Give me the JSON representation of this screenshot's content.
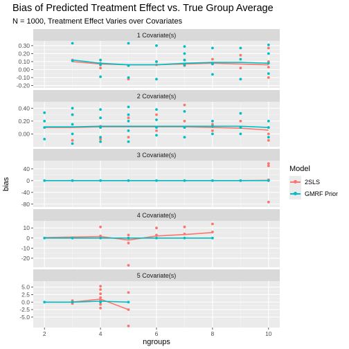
{
  "title": "Bias of Predicted Treatment Effect vs. True Group Average",
  "subtitle": "N = 1000, Treatment Effect Varies over Covariates",
  "legend": {
    "title": "Model",
    "items": [
      {
        "label": "2SLS",
        "color": "#f8766d"
      },
      {
        "label": "GMRF Prior",
        "color": "#00bfc4"
      }
    ]
  },
  "chart_data": {
    "type": "scatter",
    "xlabel": "ngroups",
    "ylabel": "bias",
    "xlim": [
      1.6,
      10.4
    ],
    "x_ticks": [
      2,
      4,
      6,
      8,
      10
    ],
    "grid": true,
    "legend_position": "right",
    "facets": [
      {
        "strip": "1 Covariate(s)",
        "ylim": [
          -0.23,
          0.36
        ],
        "y_ticks": [
          -0.2,
          -0.1,
          0.0,
          0.1,
          0.2,
          0.3
        ],
        "y_tick_labels": [
          "-0.20",
          "-0.10",
          "0.00",
          "0.10",
          "0.20",
          "0.30"
        ],
        "series": [
          {
            "name": "2SLS",
            "points": [
              [
                3,
                0.12
              ],
              [
                4,
                0.08
              ],
              [
                4,
                0.02
              ],
              [
                5,
                0.05
              ],
              [
                5,
                -0.12
              ],
              [
                6,
                0.06
              ],
              [
                6,
                0.1
              ],
              [
                7,
                0.05
              ],
              [
                7,
                0.12
              ],
              [
                8,
                0.07
              ],
              [
                8,
                0.13
              ],
              [
                9,
                0.02
              ],
              [
                9,
                0.18
              ],
              [
                10,
                0.03
              ],
              [
                10,
                -0.1
              ],
              [
                10,
                0.1
              ],
              [
                10,
                0.27
              ]
            ],
            "trend": [
              [
                3,
                0.1
              ],
              [
                4,
                0.07
              ],
              [
                5,
                0.06
              ],
              [
                6,
                0.06
              ],
              [
                7,
                0.07
              ],
              [
                8,
                0.08
              ],
              [
                9,
                0.07
              ],
              [
                10,
                0.06
              ]
            ]
          },
          {
            "name": "GMRF Prior",
            "points": [
              [
                3,
                0.33
              ],
              [
                3,
                0.11
              ],
              [
                4,
                0.12
              ],
              [
                4,
                0.06
              ],
              [
                4,
                -0.09
              ],
              [
                5,
                0.33
              ],
              [
                5,
                0.05
              ],
              [
                5,
                -0.1
              ],
              [
                6,
                0.3
              ],
              [
                6,
                0.1
              ],
              [
                6,
                -0.12
              ],
              [
                7,
                0.29
              ],
              [
                7,
                0.2
              ],
              [
                7,
                0.12
              ],
              [
                7,
                0.06
              ],
              [
                8,
                0.27
              ],
              [
                8,
                0.07
              ],
              [
                8,
                -0.06
              ],
              [
                9,
                0.27
              ],
              [
                9,
                0.13
              ],
              [
                9,
                -0.12
              ],
              [
                10,
                0.31
              ],
              [
                10,
                0.2
              ],
              [
                10,
                0.08
              ],
              [
                10,
                -0.05
              ]
            ],
            "trend": [
              [
                3,
                0.12
              ],
              [
                4,
                0.08
              ],
              [
                5,
                0.06
              ],
              [
                6,
                0.06
              ],
              [
                7,
                0.08
              ],
              [
                8,
                0.09
              ],
              [
                9,
                0.09
              ],
              [
                10,
                0.08
              ]
            ]
          }
        ]
      },
      {
        "strip": "2 Covariate(s)",
        "ylim": [
          -0.2,
          0.5
        ],
        "y_ticks": [
          0.0,
          0.2,
          0.4
        ],
        "y_tick_labels": [
          "0.00",
          "0.20",
          "0.40"
        ],
        "series": [
          {
            "name": "2SLS",
            "points": [
              [
                3,
                0.3
              ],
              [
                3,
                -0.1
              ],
              [
                4,
                0.12
              ],
              [
                4,
                -0.08
              ],
              [
                5,
                0.25
              ],
              [
                5,
                -0.05
              ],
              [
                6,
                0.3
              ],
              [
                6,
                0.05
              ],
              [
                7,
                0.45
              ],
              [
                7,
                0.2
              ],
              [
                7,
                0.1
              ],
              [
                8,
                0.15
              ],
              [
                8,
                0.05
              ],
              [
                9,
                0.2
              ],
              [
                9,
                0.1
              ],
              [
                10,
                0.1
              ],
              [
                10,
                0.0
              ],
              [
                10,
                -0.1
              ]
            ],
            "trend": [
              [
                2,
                0.1
              ],
              [
                3,
                0.1
              ],
              [
                4,
                0.11
              ],
              [
                5,
                0.11
              ],
              [
                6,
                0.11
              ],
              [
                7,
                0.11
              ],
              [
                8,
                0.1
              ],
              [
                9,
                0.09
              ],
              [
                10,
                0.06
              ]
            ]
          },
          {
            "name": "GMRF Prior",
            "points": [
              [
                2,
                0.33
              ],
              [
                2,
                0.2
              ],
              [
                2,
                0.1
              ],
              [
                2,
                -0.08
              ],
              [
                3,
                0.4
              ],
              [
                3,
                0.3
              ],
              [
                3,
                0.15
              ],
              [
                3,
                0.0
              ],
              [
                3,
                -0.15
              ],
              [
                4,
                0.38
              ],
              [
                4,
                0.25
              ],
              [
                4,
                0.1
              ],
              [
                4,
                -0.05
              ],
              [
                4,
                -0.12
              ],
              [
                5,
                0.42
              ],
              [
                5,
                0.3
              ],
              [
                5,
                0.2
              ],
              [
                5,
                0.05
              ],
              [
                5,
                -0.12
              ],
              [
                6,
                0.38
              ],
              [
                6,
                0.22
              ],
              [
                6,
                0.1
              ],
              [
                6,
                -0.02
              ],
              [
                7,
                0.35
              ],
              [
                7,
                0.1
              ],
              [
                7,
                -0.05
              ],
              [
                8,
                0.2
              ],
              [
                8,
                0.12
              ],
              [
                8,
                0.0
              ],
              [
                9,
                0.32
              ],
              [
                9,
                0.1
              ],
              [
                9,
                0.0
              ],
              [
                10,
                0.2
              ],
              [
                10,
                0.1
              ],
              [
                10,
                -0.05
              ]
            ],
            "trend": [
              [
                2,
                0.11
              ],
              [
                3,
                0.11
              ],
              [
                4,
                0.12
              ],
              [
                5,
                0.12
              ],
              [
                6,
                0.12
              ],
              [
                7,
                0.12
              ],
              [
                8,
                0.12
              ],
              [
                9,
                0.12
              ],
              [
                10,
                0.1
              ]
            ]
          }
        ]
      },
      {
        "strip": "3 Covariate(s)",
        "ylim": [
          -90,
          68
        ],
        "y_ticks": [
          -80,
          -40,
          0,
          40
        ],
        "y_tick_labels": [
          "-80",
          "-40",
          "0",
          "40"
        ],
        "series": [
          {
            "name": "2SLS",
            "points": [
              [
                10,
                58
              ],
              [
                10,
                50
              ],
              [
                10,
                -73
              ],
              [
                10,
                3
              ],
              [
                10,
                0
              ]
            ],
            "trend": [
              [
                2,
                0
              ],
              [
                3,
                0
              ],
              [
                4,
                0
              ],
              [
                5,
                0
              ],
              [
                6,
                0
              ],
              [
                7,
                0
              ],
              [
                8,
                0
              ],
              [
                9,
                0
              ],
              [
                10,
                1
              ]
            ]
          },
          {
            "name": "GMRF Prior",
            "points": [
              [
                2,
                0
              ],
              [
                3,
                0
              ],
              [
                4,
                0
              ],
              [
                5,
                0
              ],
              [
                6,
                0
              ],
              [
                7,
                0
              ],
              [
                8,
                0
              ],
              [
                9,
                0
              ],
              [
                10,
                0
              ]
            ],
            "trend": [
              [
                2,
                0
              ],
              [
                3,
                0
              ],
              [
                4,
                0
              ],
              [
                5,
                0
              ],
              [
                6,
                0
              ],
              [
                7,
                0
              ],
              [
                8,
                0
              ],
              [
                9,
                0
              ],
              [
                10,
                0
              ]
            ]
          }
        ]
      },
      {
        "strip": "4 Covariate(s)",
        "ylim": [
          -29,
          17
        ],
        "y_ticks": [
          -20,
          -10,
          0,
          10
        ],
        "y_tick_labels": [
          "-20",
          "-10",
          "0",
          "10"
        ],
        "series": [
          {
            "name": "2SLS",
            "points": [
              [
                4,
                11
              ],
              [
                4,
                2
              ],
              [
                5,
                -27
              ],
              [
                5,
                -5
              ],
              [
                5,
                3
              ],
              [
                6,
                10
              ],
              [
                6,
                3
              ],
              [
                7,
                11
              ],
              [
                7,
                4
              ],
              [
                8,
                14
              ],
              [
                8,
                6
              ]
            ],
            "trend": [
              [
                2,
                0.5
              ],
              [
                3,
                1
              ],
              [
                4,
                1.5
              ],
              [
                5,
                -2
              ],
              [
                6,
                2
              ],
              [
                7,
                3.5
              ],
              [
                8,
                5.5
              ]
            ]
          },
          {
            "name": "GMRF Prior",
            "points": [
              [
                2,
                0
              ],
              [
                3,
                0
              ],
              [
                4,
                0
              ],
              [
                5,
                0
              ],
              [
                6,
                0
              ],
              [
                7,
                0
              ],
              [
                8,
                0
              ]
            ],
            "trend": [
              [
                2,
                0
              ],
              [
                3,
                0
              ],
              [
                4,
                0
              ],
              [
                5,
                0
              ],
              [
                6,
                0
              ],
              [
                7,
                0
              ],
              [
                8,
                0
              ]
            ]
          }
        ]
      },
      {
        "strip": "5 Covariate(s)",
        "ylim": [
          -8.5,
          7
        ],
        "y_ticks": [
          -5.0,
          -2.5,
          0.0,
          2.5,
          5.0
        ],
        "y_tick_labels": [
          "-5.0",
          "-2.5",
          "0.0",
          "2.5",
          "5.0"
        ],
        "series": [
          {
            "name": "2SLS",
            "points": [
              [
                3,
                0.5
              ],
              [
                3,
                -0.5
              ],
              [
                4,
                5.3
              ],
              [
                4,
                4.2
              ],
              [
                4,
                2.8
              ],
              [
                4,
                1.5
              ],
              [
                4,
                0.5
              ],
              [
                4,
                -0.8
              ],
              [
                4,
                -2.0
              ],
              [
                5,
                3.2
              ],
              [
                5,
                -2.5
              ],
              [
                5,
                -8.0
              ]
            ],
            "trend": [
              [
                2,
                0
              ],
              [
                3,
                0
              ],
              [
                4,
                1
              ],
              [
                5,
                -2.5
              ]
            ]
          },
          {
            "name": "GMRF Prior",
            "points": [
              [
                2,
                0
              ],
              [
                3,
                0
              ],
              [
                4,
                0
              ],
              [
                5,
                0
              ]
            ],
            "trend": [
              [
                2,
                0
              ],
              [
                3,
                0
              ],
              [
                4,
                0.3
              ],
              [
                5,
                0
              ]
            ]
          }
        ]
      }
    ]
  }
}
